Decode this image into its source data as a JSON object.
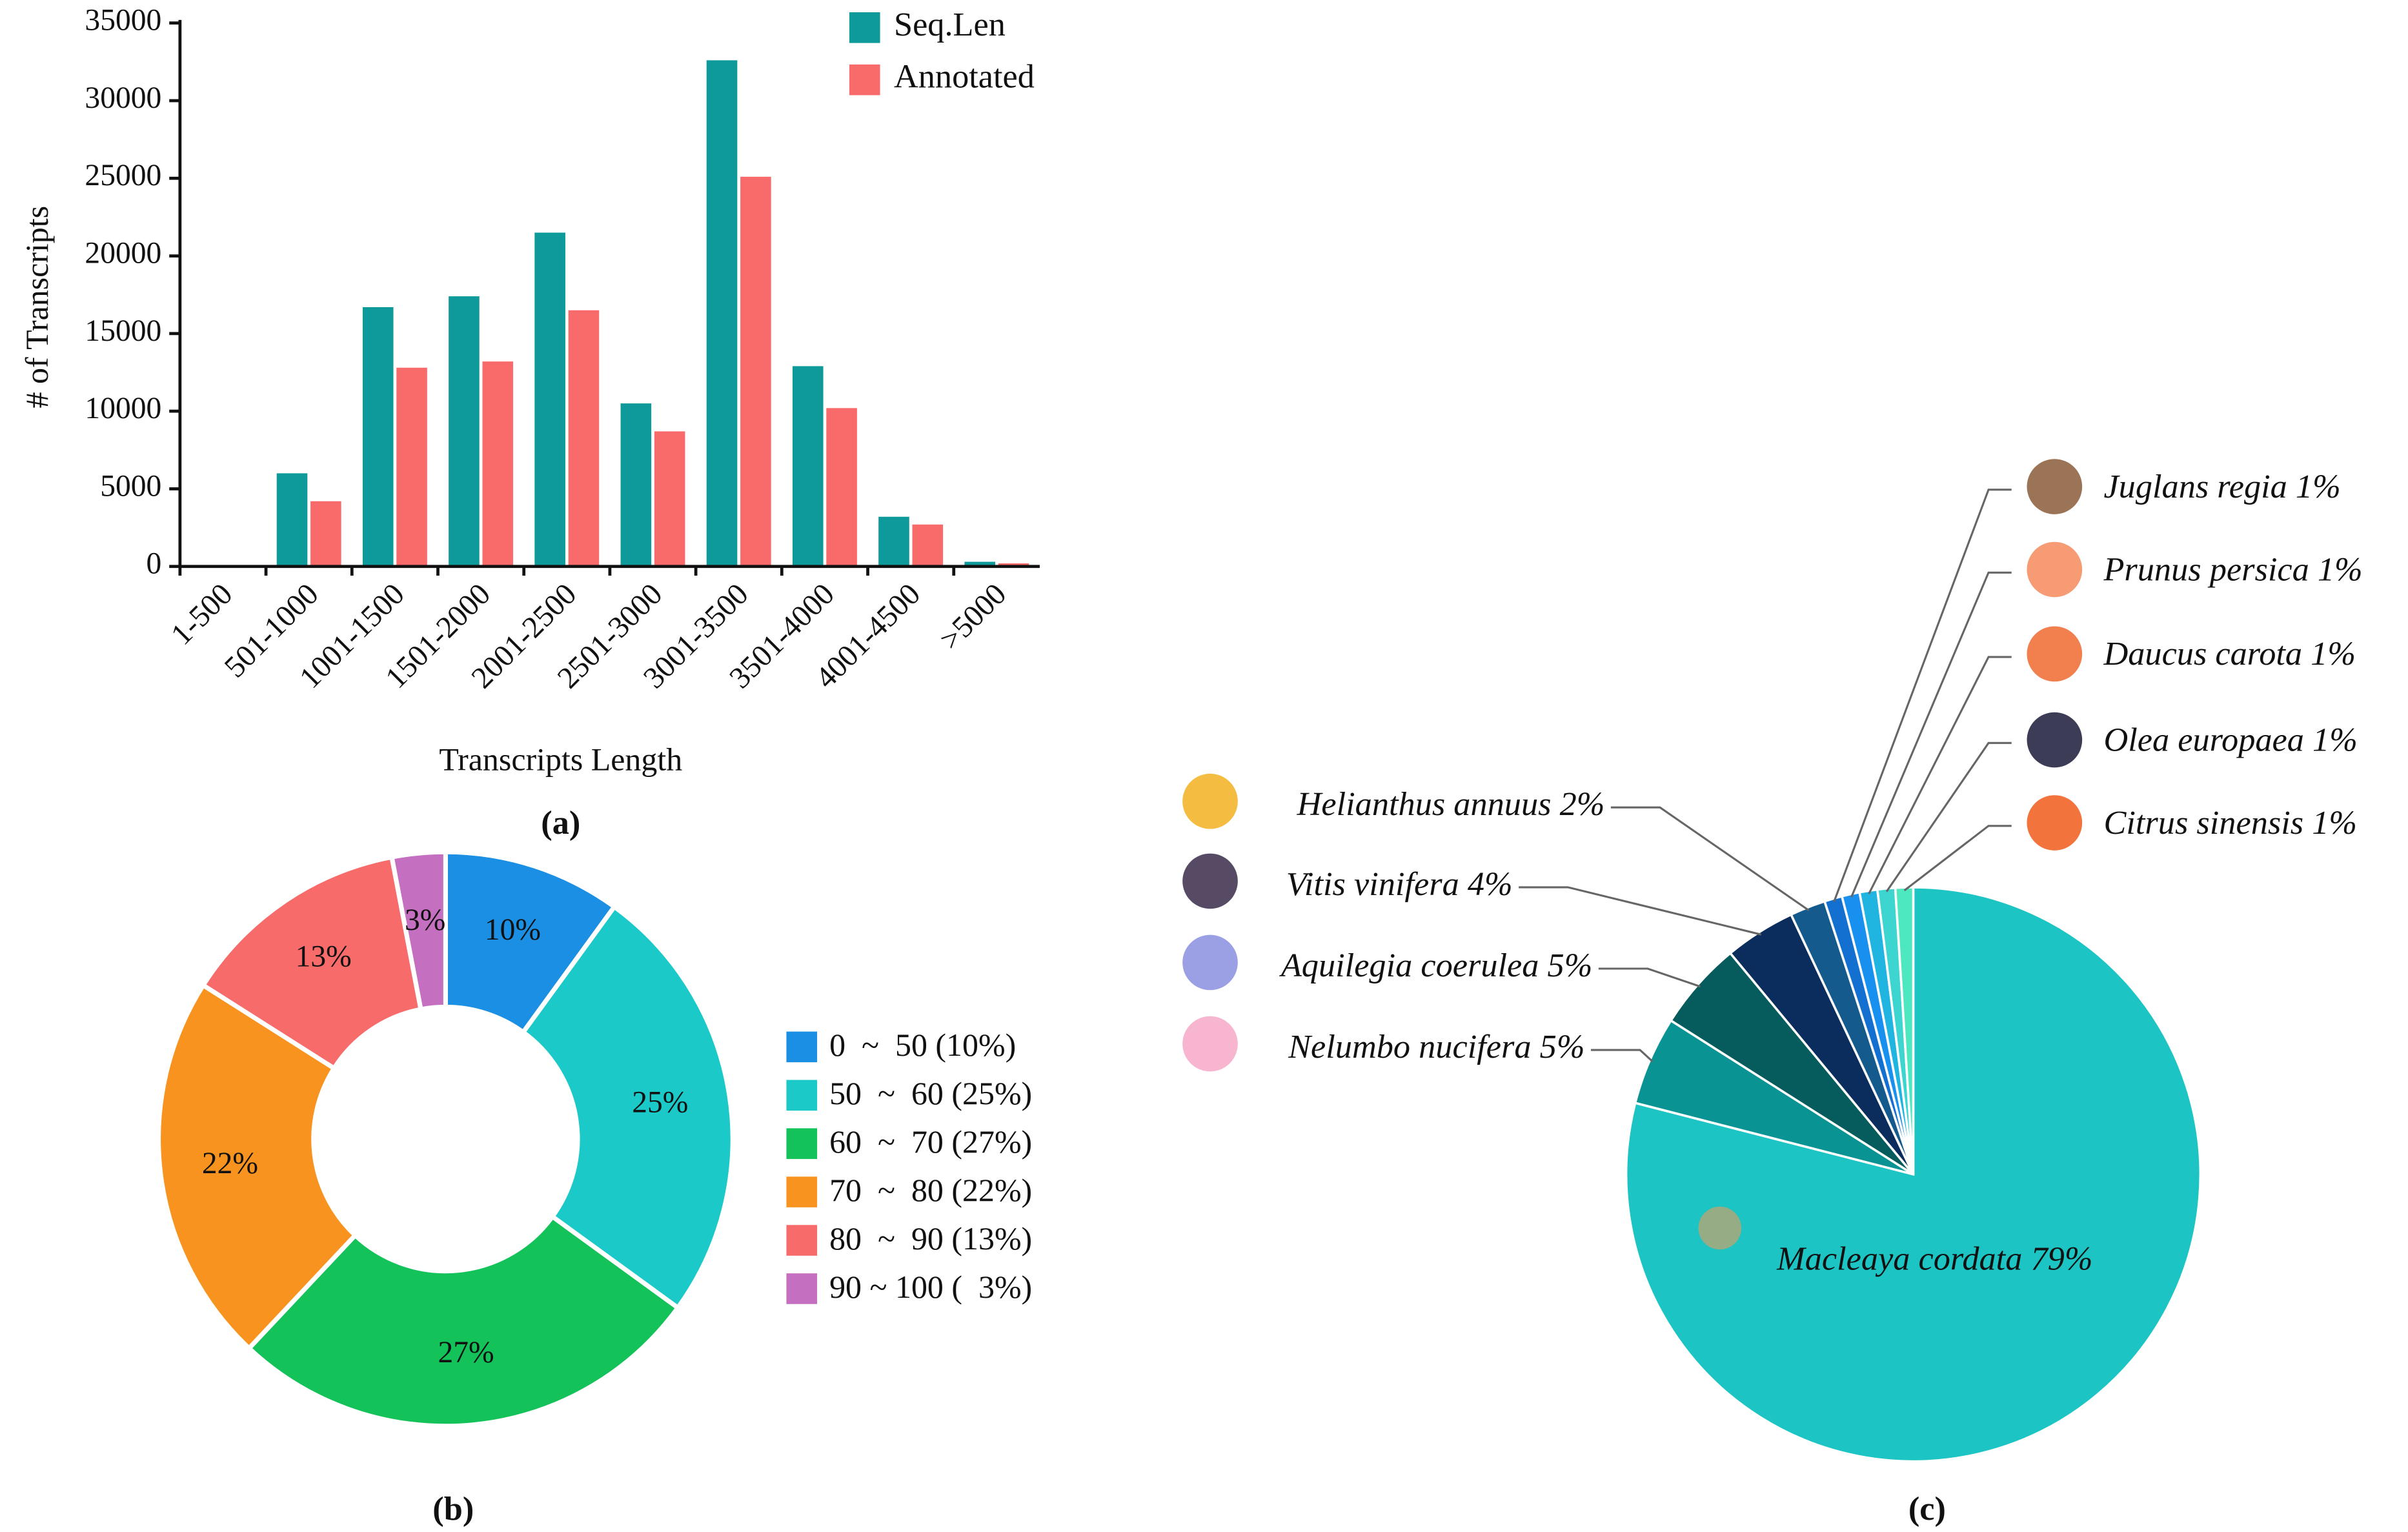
{
  "chart_data": [
    {
      "type": "bar",
      "label": "(a)",
      "x_label": "Transcripts Length",
      "y_label": "# of Transcripts",
      "categories": [
        "1-500",
        "501-1000",
        "1001-1500",
        "1501-2000",
        "2001-2500",
        "2501-3000",
        "3001-3500",
        "3501-4000",
        "4001-4500",
        ">5000"
      ],
      "series": [
        {
          "name": "Seq.Len",
          "color": "#0e9a9a",
          "values": [
            0,
            6000,
            16700,
            17400,
            21500,
            10500,
            32600,
            12900,
            3200,
            300
          ]
        },
        {
          "name": "Annotated",
          "color": "#f96b6b",
          "values": [
            0,
            4200,
            12800,
            13200,
            16500,
            8700,
            25100,
            10200,
            2700,
            200
          ]
        }
      ],
      "ylim": [
        0,
        35000
      ],
      "yticks": [
        0,
        5000,
        10000,
        15000,
        20000,
        25000,
        30000,
        35000
      ]
    },
    {
      "type": "donut",
      "label": "(b)",
      "categories": [
        "0  ~  50 (10%)",
        "50  ~  60 (25%)",
        "60  ~  70 (27%)",
        "70  ~  80 (22%)",
        "80  ~  90 (13%)",
        "90 ~ 100 (  3%)"
      ],
      "values": [
        10,
        25,
        27,
        22,
        13,
        3
      ],
      "value_labels": [
        "10%",
        "25%",
        "27%",
        "22%",
        "13%",
        "3%"
      ],
      "colors": [
        "#1a8fe3",
        "#1cc9c9",
        "#14c25a",
        "#f7931e",
        "#f76b6b",
        "#c56fc0"
      ]
    },
    {
      "type": "pie",
      "label": "(c)",
      "categories": [
        "Macleaya cordata",
        "Nelumbo nucifera",
        "Aquilegia coerulea",
        "Vitis vinifera",
        "Helianthus annuus",
        "Juglans regia",
        "Prunus persica",
        "Daucus carota",
        "Olea europaea",
        "Citrus sinensis"
      ],
      "values": [
        79,
        5,
        5,
        4,
        2,
        1,
        1,
        1,
        1,
        1
      ],
      "value_labels": [
        "79%",
        "5%",
        "5%",
        "4%",
        "2%",
        "1%",
        "1%",
        "1%",
        "1%",
        "1%"
      ],
      "colors": [
        "#1cc4c4",
        "#0a9393",
        "#065c5c",
        "#0a2d5e",
        "#145a8c",
        "#1470d0",
        "#1890f0",
        "#1fb5e0",
        "#3dd5d0",
        "#4de8c0"
      ]
    }
  ]
}
